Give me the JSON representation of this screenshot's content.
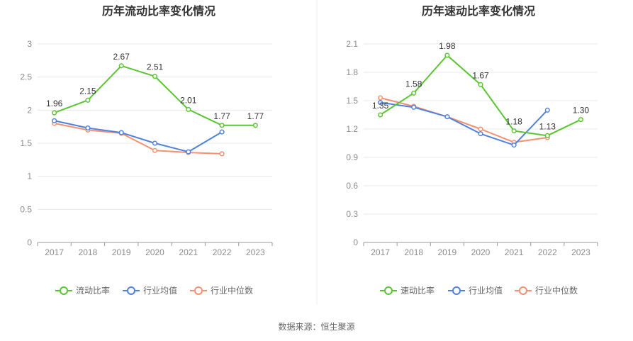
{
  "colors": {
    "main_series": "#5ac532",
    "avg_series": "#4f82e0",
    "median_series": "#f59070",
    "grid": "#e8e8e8",
    "axis": "#999999",
    "divider": "#eeeeee"
  },
  "source_text": "数据来源：恒生聚源",
  "chart_data": [
    {
      "type": "line",
      "title": "历年流动比率变化情况",
      "categories": [
        "2017",
        "2018",
        "2019",
        "2020",
        "2021",
        "2022",
        "2023"
      ],
      "ylim": [
        0,
        3
      ],
      "yticks": [
        0,
        0.5,
        1,
        1.5,
        2,
        2.5,
        3
      ],
      "ytick_labels": [
        "0",
        "0.5",
        "1",
        "1.5",
        "2",
        "2.5",
        "3"
      ],
      "grid": true,
      "legend_position": "bottom",
      "series": [
        {
          "name": "流动比率",
          "values": [
            1.96,
            2.15,
            2.67,
            2.51,
            2.01,
            1.77,
            1.77
          ],
          "labels": [
            "1.96",
            "2.15",
            "2.67",
            "2.51",
            "2.01",
            "1.77",
            "1.77"
          ]
        },
        {
          "name": "行业均值",
          "values": [
            1.84,
            1.73,
            1.66,
            1.5,
            1.37,
            1.67,
            null
          ]
        },
        {
          "name": "行业中位数",
          "values": [
            1.8,
            1.7,
            1.65,
            1.39,
            1.36,
            1.34,
            null
          ]
        }
      ]
    },
    {
      "type": "line",
      "title": "历年速动比率变化情况",
      "categories": [
        "2017",
        "2018",
        "2019",
        "2020",
        "2021",
        "2022",
        "2023"
      ],
      "ylim": [
        0,
        2.1
      ],
      "yticks": [
        0,
        0.3,
        0.6,
        0.9,
        1.2,
        1.5,
        1.8,
        2.1
      ],
      "ytick_labels": [
        "0",
        "0.3",
        "0.6",
        "0.9",
        "1.2",
        "1.5",
        "1.8",
        "2.1"
      ],
      "grid": true,
      "legend_position": "bottom",
      "series": [
        {
          "name": "速动比率",
          "values": [
            1.35,
            1.58,
            1.98,
            1.67,
            1.18,
            1.13,
            1.3
          ],
          "labels": [
            "1.35",
            "1.58",
            "1.98",
            "1.67",
            "1.18",
            "1.13",
            "1.30"
          ]
        },
        {
          "name": "行业均值",
          "values": [
            1.48,
            1.43,
            1.33,
            1.15,
            1.03,
            1.4,
            null
          ]
        },
        {
          "name": "行业中位数",
          "values": [
            1.53,
            1.44,
            1.33,
            1.2,
            1.06,
            1.11,
            null
          ]
        }
      ]
    }
  ]
}
